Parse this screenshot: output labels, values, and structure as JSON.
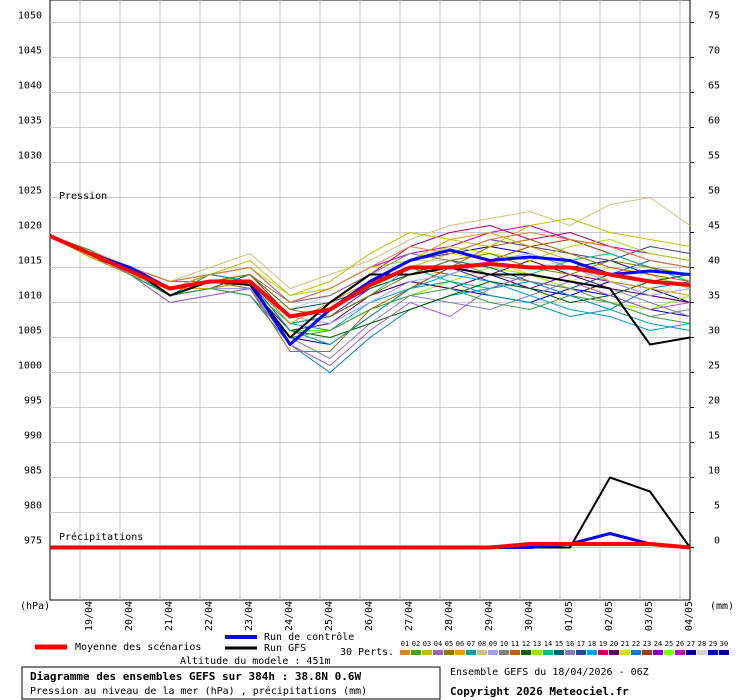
{
  "chart_data": {
    "type": "line",
    "title": "Diagramme des ensembles GEFS sur 384h : 38.8N 0.6W",
    "subtitle": "Pression au niveau de la mer (hPa) , précipitations (mm)",
    "run_label": "Ensemble GEFS du 18/04/2026 - 06Z",
    "copyright": "Copyright 2026 Meteociel.fr",
    "altitude_label": "Altitude du modele : 451m",
    "pressure_label": "Pression",
    "precip_label": "Précipitations",
    "ylabel": "(hPa)",
    "y2label": "(mm)",
    "perturbations_label": "30 Perts.",
    "grid": true,
    "x": [
      0,
      24,
      48,
      72,
      96,
      120,
      144,
      168,
      192,
      216,
      240,
      264,
      288,
      312,
      336,
      360,
      384
    ],
    "xlim": [
      0,
      384
    ],
    "xticks": [
      {
        "value": 18,
        "label": "19/04"
      },
      {
        "value": 42,
        "label": "20/04"
      },
      {
        "value": 66,
        "label": "21/04"
      },
      {
        "value": 90,
        "label": "22/04"
      },
      {
        "value": 114,
        "label": "23/04"
      },
      {
        "value": 138,
        "label": "24/04"
      },
      {
        "value": 162,
        "label": "25/04"
      },
      {
        "value": 186,
        "label": "26/04"
      },
      {
        "value": 210,
        "label": "27/04"
      },
      {
        "value": 234,
        "label": "28/04"
      },
      {
        "value": 258,
        "label": "29/04"
      },
      {
        "value": 282,
        "label": "30/04"
      },
      {
        "value": 306,
        "label": "01/05"
      },
      {
        "value": 330,
        "label": "02/05"
      },
      {
        "value": 354,
        "label": "03/05"
      },
      {
        "value": 378,
        "label": "04/05"
      }
    ],
    "ylim": [
      967.5,
      1053
    ],
    "yticks": [
      975,
      980,
      985,
      990,
      995,
      1000,
      1005,
      1010,
      1015,
      1020,
      1025,
      1030,
      1035,
      1040,
      1045,
      1050
    ],
    "y2lim": [
      -7.5,
      78
    ],
    "y2ticks": [
      0,
      5,
      10,
      15,
      20,
      25,
      30,
      35,
      40,
      45,
      50,
      55,
      60,
      65,
      70,
      75
    ],
    "series": [
      {
        "name": "Moyenne des scénarios",
        "color": "#ff0000",
        "values": [
          1019.5,
          1017,
          1014.5,
          1012,
          1013,
          1013,
          1008,
          1009,
          1012.5,
          1015,
          1015,
          1015.5,
          1015,
          1015,
          1014,
          1013,
          1012.5
        ],
        "precip": [
          0,
          0,
          0,
          0,
          0,
          0,
          0,
          0,
          0,
          0,
          0,
          0,
          0.5,
          0.5,
          0.5,
          0.5,
          0
        ]
      },
      {
        "name": "Run de contrôle",
        "color": "#0000ff",
        "values": [
          1019.5,
          1017,
          1015,
          1012,
          1013,
          1013,
          1004,
          1009,
          1013,
          1016,
          1017.5,
          1016,
          1016.5,
          1016,
          1014,
          1014.5,
          1014
        ],
        "precip": [
          0,
          0,
          0,
          0,
          0,
          0,
          0,
          0,
          0,
          0,
          0,
          0,
          0,
          0.5,
          2,
          0.5,
          0
        ]
      },
      {
        "name": "Run GFS",
        "color": "#000000",
        "values": [
          1019.5,
          1017,
          1015,
          1011,
          1013,
          1012.5,
          1005,
          1010,
          1014,
          1014,
          1015,
          1014,
          1014,
          1013,
          1012,
          1004,
          1005
        ],
        "precip": [
          0,
          0,
          0,
          0,
          0,
          0,
          0,
          0,
          0,
          0,
          0,
          0,
          0,
          0,
          10,
          8,
          0
        ]
      },
      {
        "name": "01",
        "color": "#e08040",
        "values": [
          1019.5,
          1017,
          1015,
          1013,
          1014,
          1015,
          1010,
          1012,
          1015,
          1018,
          1017,
          1019,
          1020,
          1019,
          1018,
          1016,
          1015
        ]
      },
      {
        "name": "02",
        "color": "#40a040",
        "values": [
          1019.5,
          1017.5,
          1014,
          1011,
          1012,
          1011,
          1005,
          1006,
          1009,
          1011,
          1012,
          1010,
          1009,
          1011,
          1010,
          1008,
          1007
        ]
      },
      {
        "name": "03",
        "color": "#c0c000",
        "values": [
          1019.5,
          1016.5,
          1015,
          1012,
          1014,
          1016,
          1011,
          1013,
          1017,
          1020,
          1019,
          1018,
          1021,
          1022,
          1020,
          1019,
          1018
        ]
      },
      {
        "name": "04",
        "color": "#a060c0",
        "values": [
          1019.5,
          1017,
          1014,
          1010,
          1011,
          1012,
          1004,
          1001,
          1006,
          1010,
          1008,
          1012,
          1014,
          1013,
          1011,
          1009,
          1010
        ]
      },
      {
        "name": "05",
        "color": "#808000",
        "values": [
          1019.5,
          1017,
          1015,
          1013,
          1013,
          1014,
          1009,
          1008,
          1011,
          1014,
          1016,
          1017,
          1015,
          1014,
          1016,
          1015,
          1014
        ]
      },
      {
        "name": "06",
        "color": "#e0a000",
        "values": [
          1019.5,
          1016.5,
          1014,
          1012,
          1012,
          1013,
          1007,
          1010,
          1013,
          1016,
          1019,
          1020,
          1018,
          1016,
          1013,
          1012,
          1011
        ]
      },
      {
        "name": "07",
        "color": "#00a0a0",
        "values": [
          1019.5,
          1017,
          1014.5,
          1011,
          1014,
          1013,
          1006,
          1004,
          1008,
          1012,
          1013,
          1011,
          1010,
          1008,
          1009,
          1007,
          1006
        ]
      },
      {
        "name": "08",
        "color": "#d0c080",
        "values": [
          1019.5,
          1017.5,
          1015,
          1013,
          1015,
          1017,
          1012,
          1014,
          1016,
          1019,
          1021,
          1022,
          1023,
          1021,
          1024,
          1025,
          1021
        ]
      },
      {
        "name": "09",
        "color": "#a0a0ff",
        "values": [
          1019.5,
          1017,
          1014,
          1012,
          1012,
          1012,
          1008,
          1007,
          1010,
          1013,
          1014,
          1016,
          1017,
          1015,
          1013,
          1011,
          1012
        ]
      },
      {
        "name": "10",
        "color": "#808080",
        "values": [
          1019.5,
          1016.5,
          1015,
          1011,
          1013,
          1014,
          1010,
          1011,
          1014,
          1017,
          1016,
          1014,
          1013,
          1012,
          1010,
          1008,
          1009
        ]
      },
      {
        "name": "11",
        "color": "#c06000",
        "values": [
          1019.5,
          1017,
          1014.5,
          1012,
          1013,
          1012,
          1003,
          1003,
          1009,
          1012,
          1015,
          1018,
          1019,
          1017,
          1015,
          1014,
          1013
        ]
      },
      {
        "name": "12",
        "color": "#006000",
        "values": [
          1019.5,
          1017,
          1014,
          1011,
          1012,
          1013,
          1006,
          1005,
          1007,
          1009,
          1011,
          1013,
          1012,
          1010,
          1011,
          1013,
          1014
        ]
      },
      {
        "name": "13",
        "color": "#a0e000",
        "values": [
          1019.5,
          1017.5,
          1015,
          1013,
          1014,
          1015,
          1011,
          1012,
          1015,
          1016,
          1018,
          1017,
          1016,
          1018,
          1019,
          1017,
          1016
        ]
      },
      {
        "name": "14",
        "color": "#00c080",
        "values": [
          1019.5,
          1017,
          1014,
          1012,
          1013,
          1012,
          1007,
          1008,
          1011,
          1015,
          1013,
          1012,
          1014,
          1016,
          1017,
          1015,
          1013
        ]
      },
      {
        "name": "15",
        "color": "#006080",
        "values": [
          1019.5,
          1016.5,
          1014.5,
          1012,
          1012,
          1014,
          1009,
          1010,
          1012,
          1014,
          1016,
          1015,
          1013,
          1012,
          1014,
          1016,
          1015
        ]
      },
      {
        "name": "16",
        "color": "#8080c0",
        "values": [
          1019.5,
          1017,
          1014,
          1010,
          1011,
          1012,
          1005,
          1002,
          1007,
          1011,
          1010,
          1009,
          1011,
          1013,
          1012,
          1010,
          1008
        ]
      },
      {
        "name": "17",
        "color": "#404080",
        "values": [
          1019.5,
          1017,
          1015,
          1013,
          1014,
          1013,
          1008,
          1009,
          1013,
          1016,
          1017,
          1019,
          1018,
          1017,
          1016,
          1018,
          1017
        ]
      },
      {
        "name": "18",
        "color": "#00a0e0",
        "values": [
          1019.5,
          1017,
          1014.5,
          1011,
          1013,
          1013,
          1007,
          1006,
          1010,
          1012,
          1014,
          1013,
          1011,
          1009,
          1008,
          1006,
          1007
        ]
      },
      {
        "name": "19",
        "color": "#c00060",
        "values": [
          1019.5,
          1017.5,
          1015,
          1012,
          1014,
          1015,
          1010,
          1011,
          1014,
          1018,
          1020,
          1021,
          1019,
          1020,
          1018,
          1016,
          1015
        ]
      },
      {
        "name": "20",
        "color": "#600060",
        "values": [
          1019.5,
          1016.5,
          1014,
          1012,
          1012,
          1012,
          1006,
          1007,
          1011,
          1013,
          1012,
          1014,
          1016,
          1014,
          1012,
          1011,
          1010
        ]
      },
      {
        "name": "21",
        "color": "#e0e000",
        "values": [
          1019.5,
          1017,
          1015,
          1013,
          1013,
          1014,
          1009,
          1010,
          1012,
          1015,
          1017,
          1016,
          1014,
          1013,
          1015,
          1014,
          1012
        ]
      },
      {
        "name": "22",
        "color": "#0080c0",
        "values": [
          1019.5,
          1017,
          1014,
          1011,
          1012,
          1011,
          1004,
          1000,
          1005,
          1009,
          1011,
          1012,
          1013,
          1011,
          1009,
          1012,
          1013
        ]
      },
      {
        "name": "23",
        "color": "#a04000",
        "values": [
          1019.5,
          1017,
          1014.5,
          1012,
          1013,
          1014,
          1008,
          1009,
          1013,
          1015,
          1014,
          1016,
          1018,
          1019,
          1017,
          1015,
          1014
        ]
      },
      {
        "name": "24",
        "color": "#8000c0",
        "values": [
          1019.5,
          1017.5,
          1015,
          1012,
          1014,
          1013,
          1007,
          1008,
          1012,
          1014,
          1015,
          1013,
          1012,
          1014,
          1013,
          1011,
          1010
        ]
      },
      {
        "name": "25",
        "color": "#80ff00",
        "values": [
          1019.5,
          1017,
          1014,
          1011,
          1012,
          1013,
          1006,
          1006,
          1009,
          1011,
          1013,
          1015,
          1014,
          1012,
          1010,
          1009,
          1011
        ]
      },
      {
        "name": "26",
        "color": "#c000c0",
        "values": [
          1019.5,
          1016.5,
          1015,
          1013,
          1014,
          1015,
          1010,
          1012,
          1015,
          1017,
          1018,
          1020,
          1021,
          1019,
          1018,
          1017,
          1016
        ]
      },
      {
        "name": "27",
        "color": "#000080",
        "values": [
          1019.5,
          1017,
          1014.5,
          1012,
          1012,
          1012,
          1005,
          1004,
          1008,
          1012,
          1015,
          1014,
          1012,
          1011,
          1013,
          1012,
          1010
        ]
      },
      {
        "name": "28",
        "color": "#d0d0d0",
        "values": [
          1019.5,
          1017,
          1014,
          1012,
          1013,
          1014,
          1009,
          1011,
          1014,
          1016,
          1016,
          1017,
          1015,
          1016,
          1014,
          1013,
          1014
        ]
      },
      {
        "name": "29",
        "color": "#0000c0",
        "values": [
          1019.5,
          1017,
          1015,
          1012,
          1013,
          1013,
          1007,
          1008,
          1011,
          1013,
          1012,
          1011,
          1010,
          1012,
          1011,
          1009,
          1008
        ]
      },
      {
        "name": "30",
        "color": "#0000a0",
        "values": [
          1019.5,
          1017.5,
          1014.5,
          1011,
          1013,
          1014,
          1008,
          1009,
          1012,
          1015,
          1017,
          1018,
          1017,
          1015,
          1016,
          1014,
          1012
        ]
      }
    ]
  }
}
